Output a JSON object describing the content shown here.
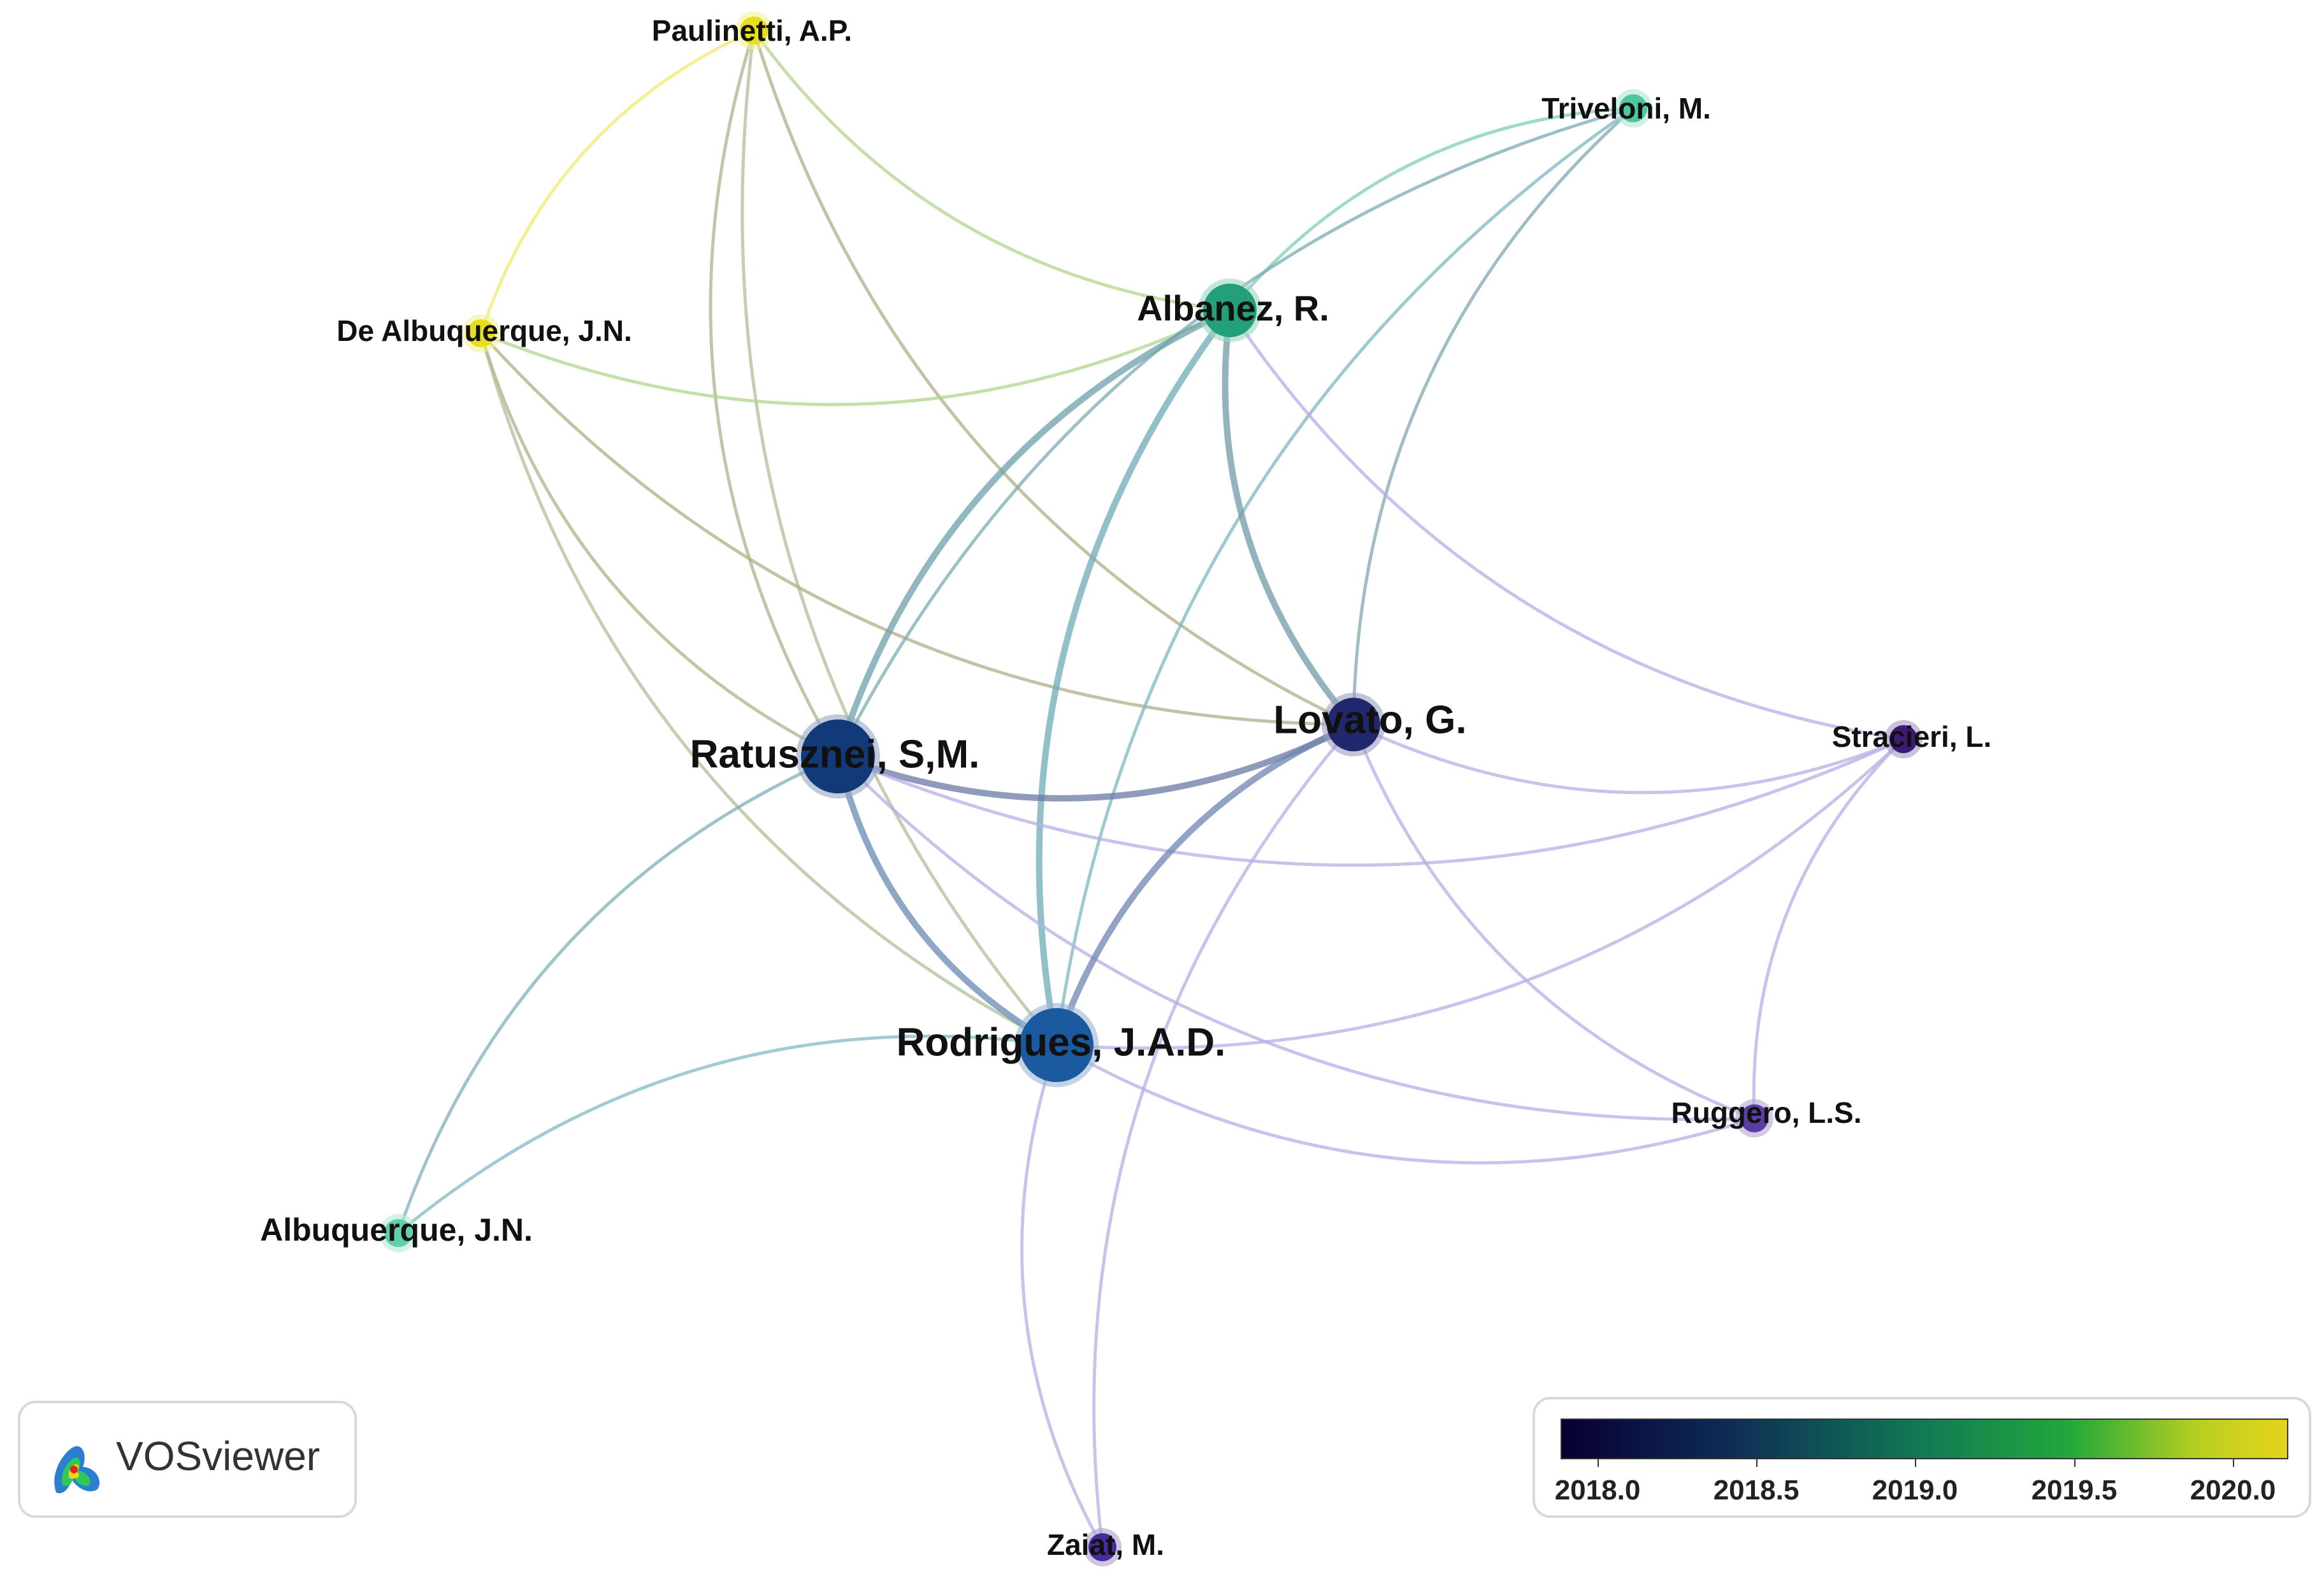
{
  "nodes": [
    {
      "id": "paulinetti",
      "label": "Paulinetti, A.P.",
      "color": "#e8de1e",
      "weight": 1
    },
    {
      "id": "triveloni",
      "label": "Triveloni, M.",
      "color": "#4fc6a0",
      "weight": 1
    },
    {
      "id": "albanez",
      "label": "Albanez, R.",
      "color": "#23a07a",
      "weight": 3
    },
    {
      "id": "dealbuquerque",
      "label": "De Albuquerque, J.N.",
      "color": "#e8de1e",
      "weight": 1
    },
    {
      "id": "ratusznei",
      "label": "Ratusznei, S,M.",
      "color": "#123a78",
      "weight": 4
    },
    {
      "id": "lovato",
      "label": "Lovato, G.",
      "color": "#22286e",
      "weight": 3
    },
    {
      "id": "stracieri",
      "label": "Stracieri, L.",
      "color": "#3e1a78",
      "weight": 1
    },
    {
      "id": "rodrigues",
      "label": "Rodrigues, J.A.D.",
      "color": "#1c5aa0",
      "weight": 4
    },
    {
      "id": "ruggero",
      "label": "Ruggero, L.S.",
      "color": "#5a3ea0",
      "weight": 1
    },
    {
      "id": "albuquerque",
      "label": "Albuquerque, J.N.",
      "color": "#5fd0a8",
      "weight": 1
    },
    {
      "id": "zaiat",
      "label": "Zaiat, M.",
      "color": "#4a2a98",
      "weight": 1
    }
  ],
  "links": [
    [
      "paulinetti",
      "dealbuquerque"
    ],
    [
      "paulinetti",
      "albanez"
    ],
    [
      "paulinetti",
      "ratusznei"
    ],
    [
      "paulinetti",
      "rodrigues"
    ],
    [
      "paulinetti",
      "lovato"
    ],
    [
      "dealbuquerque",
      "albanez"
    ],
    [
      "dealbuquerque",
      "ratusznei"
    ],
    [
      "dealbuquerque",
      "lovato"
    ],
    [
      "dealbuquerque",
      "rodrigues"
    ],
    [
      "triveloni",
      "albanez"
    ],
    [
      "triveloni",
      "lovato"
    ],
    [
      "triveloni",
      "ratusznei"
    ],
    [
      "triveloni",
      "rodrigues"
    ],
    [
      "albanez",
      "ratusznei"
    ],
    [
      "albanez",
      "lovato"
    ],
    [
      "albanez",
      "rodrigues"
    ],
    [
      "albanez",
      "stracieri"
    ],
    [
      "ratusznei",
      "lovato"
    ],
    [
      "ratusznei",
      "rodrigues"
    ],
    [
      "ratusznei",
      "stracieri"
    ],
    [
      "ratusznei",
      "ruggero"
    ],
    [
      "ratusznei",
      "albuquerque"
    ],
    [
      "lovato",
      "rodrigues"
    ],
    [
      "lovato",
      "stracieri"
    ],
    [
      "lovato",
      "ruggero"
    ],
    [
      "lovato",
      "zaiat"
    ],
    [
      "rodrigues",
      "stracieri"
    ],
    [
      "rodrigues",
      "ruggero"
    ],
    [
      "rodrigues",
      "zaiat"
    ],
    [
      "rodrigues",
      "albuquerque"
    ],
    [
      "stracieri",
      "ruggero"
    ]
  ],
  "logo": {
    "text": "VOSviewer"
  },
  "legend": {
    "colors": [
      "#080032",
      "#127a55",
      "#e6d31a"
    ],
    "labels": [
      "2018.0",
      "2018.5",
      "2019.0",
      "2019.5",
      "2020.0"
    ]
  }
}
